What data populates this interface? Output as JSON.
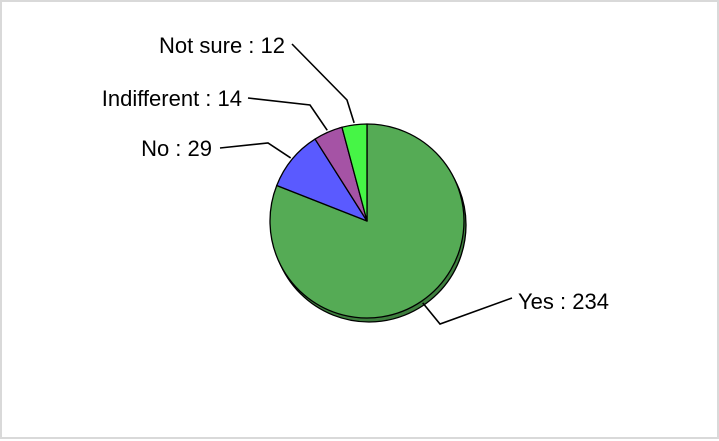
{
  "chart_data": {
    "type": "pie",
    "title": "",
    "slices": [
      {
        "label": "Yes",
        "value": 234,
        "color": "#55ab55",
        "text": "Yes : 234"
      },
      {
        "label": "No",
        "value": 29,
        "color": "#5a5aff",
        "text": "No : 29"
      },
      {
        "label": "Indifferent",
        "value": 14,
        "color": "#a553a5",
        "text": "Indifferent : 14"
      },
      {
        "label": "Not sure",
        "value": 12,
        "color": "#46f546",
        "text": "Not sure : 12"
      }
    ],
    "start_angle_deg": 0,
    "direction": "clockwise",
    "legend": "none",
    "shadow": true
  }
}
